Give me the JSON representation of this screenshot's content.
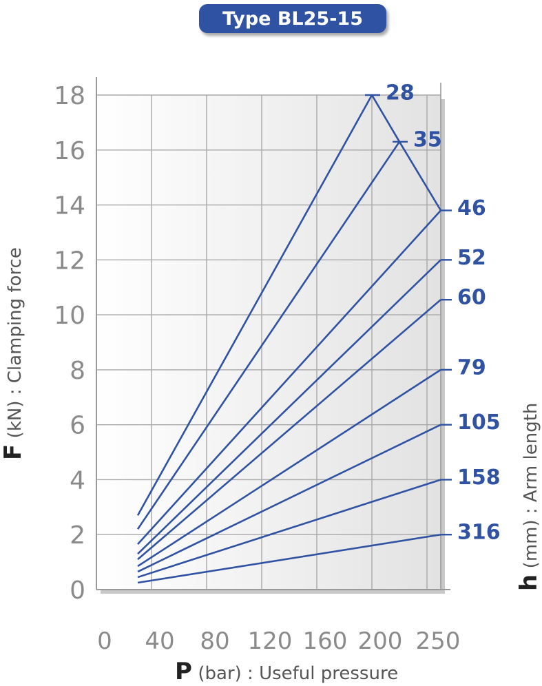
{
  "title": "Type BL25-15",
  "chart_data": {
    "type": "line",
    "title": "Type BL25-15",
    "x_ticks": [
      "0",
      "40",
      "80",
      "120",
      "160",
      "200",
      "250"
    ],
    "y_ticks": [
      "0",
      "2",
      "4",
      "6",
      "8",
      "10",
      "12",
      "14",
      "16",
      "18"
    ],
    "xlabel": {
      "symbol": "P",
      "text": "(bar) : Useful pressure"
    },
    "ylabel": {
      "symbol": "F",
      "text": "(kN) : Clamping force"
    },
    "rlabel": {
      "symbol": "h",
      "text": "(mm) : Arm length"
    },
    "xlim": [
      0,
      250
    ],
    "ylim": [
      0,
      18
    ],
    "grid": true,
    "series": [
      {
        "name": "28",
        "x": [
          30,
          200
        ],
        "y": [
          2.7,
          18.0
        ]
      },
      {
        "name": "35",
        "x": [
          30,
          220
        ],
        "y": [
          2.2,
          16.3
        ]
      },
      {
        "name": "46",
        "x": [
          30,
          250
        ],
        "y": [
          1.65,
          13.8
        ]
      },
      {
        "name": "52",
        "x": [
          30,
          250
        ],
        "y": [
          1.3,
          12.0
        ]
      },
      {
        "name": "60",
        "x": [
          30,
          250
        ],
        "y": [
          1.1,
          10.55
        ]
      },
      {
        "name": "79",
        "x": [
          30,
          250
        ],
        "y": [
          0.85,
          8.0
        ]
      },
      {
        "name": "105",
        "x": [
          30,
          250
        ],
        "y": [
          0.65,
          6.0
        ]
      },
      {
        "name": "158",
        "x": [
          30,
          250
        ],
        "y": [
          0.45,
          4.0
        ]
      },
      {
        "name": "316",
        "x": [
          30,
          250
        ],
        "y": [
          0.25,
          2.0
        ]
      }
    ],
    "limit_line": {
      "x": [
        200,
        220,
        250
      ],
      "y": [
        18.0,
        16.3,
        13.8
      ]
    },
    "colors": {
      "line": "#2f52a3",
      "grid": "#a8a8a8",
      "tick": "#8a8a8a"
    }
  }
}
